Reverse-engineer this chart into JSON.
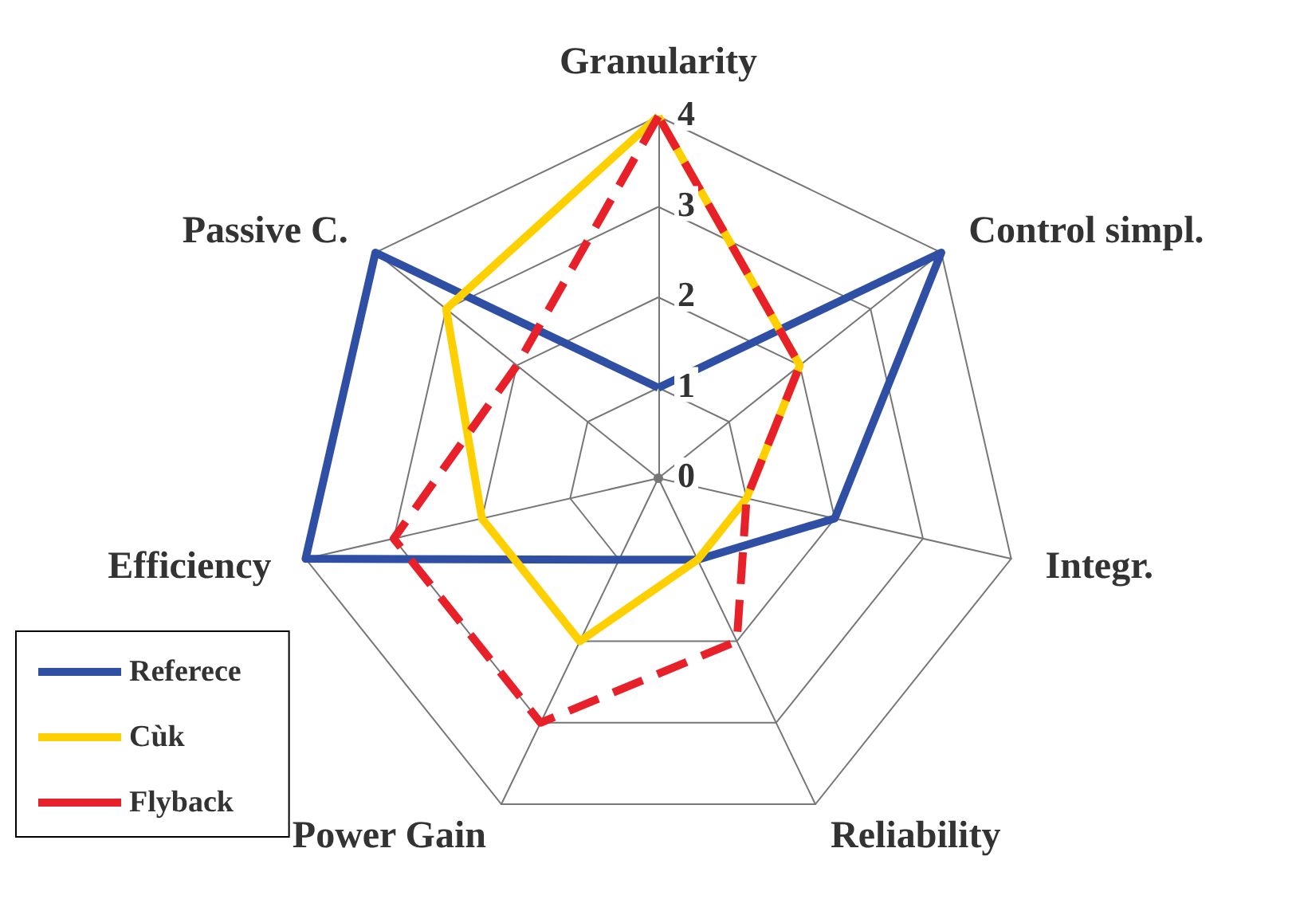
{
  "chart_data": {
    "type": "radar",
    "categories": [
      "Granularity",
      "Control simpl.",
      "Integr.",
      "Reliability",
      "Power Gain",
      "Efficiency",
      "Passive C."
    ],
    "series": [
      {
        "name": "Referece",
        "color": "#2e4fa3",
        "values": [
          1,
          4,
          2,
          1,
          1,
          4,
          4
        ],
        "line_style": "solid"
      },
      {
        "name": "Cùk",
        "color": "#ffd000",
        "values": [
          4,
          2,
          1,
          1,
          2,
          2,
          3
        ],
        "line_style": "solid"
      },
      {
        "name": "Flyback",
        "color": "#e8202a",
        "values": [
          4,
          2,
          1,
          2,
          3,
          3,
          2
        ],
        "line_style": "dashed"
      }
    ],
    "ylim": [
      0,
      4
    ],
    "yticks": [
      0,
      1,
      2,
      3,
      4
    ],
    "grid": true,
    "legend": "bottom left",
    "marker": "none"
  }
}
